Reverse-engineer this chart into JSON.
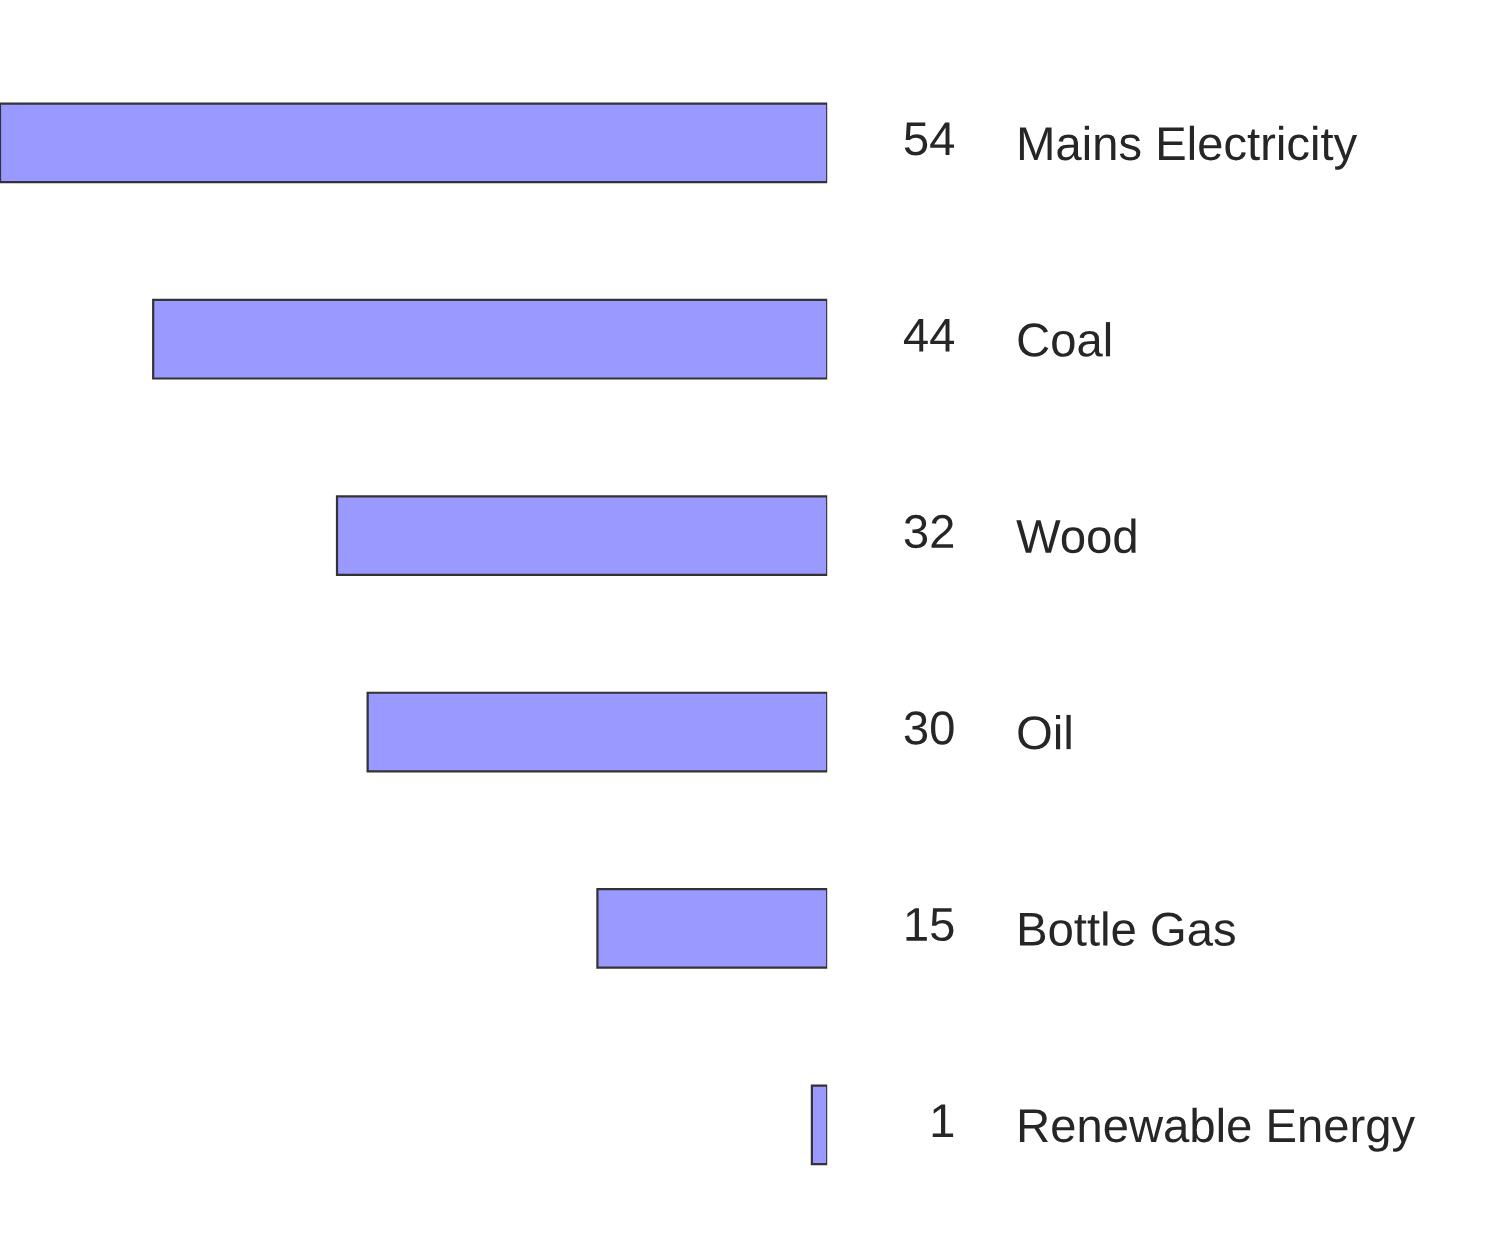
{
  "chart_data": {
    "type": "bar",
    "orientation": "horizontal",
    "categories": [
      "Mains Electricity",
      "Coal",
      "Wood",
      "Oil",
      "Bottle Gas",
      "Renewable Energy"
    ],
    "values": [
      54,
      44,
      32,
      30,
      15,
      1
    ],
    "color": "#9999ff",
    "xlim": [
      54,
      0
    ],
    "data_labels": true,
    "tick_labels": "y",
    "legend": false
  }
}
